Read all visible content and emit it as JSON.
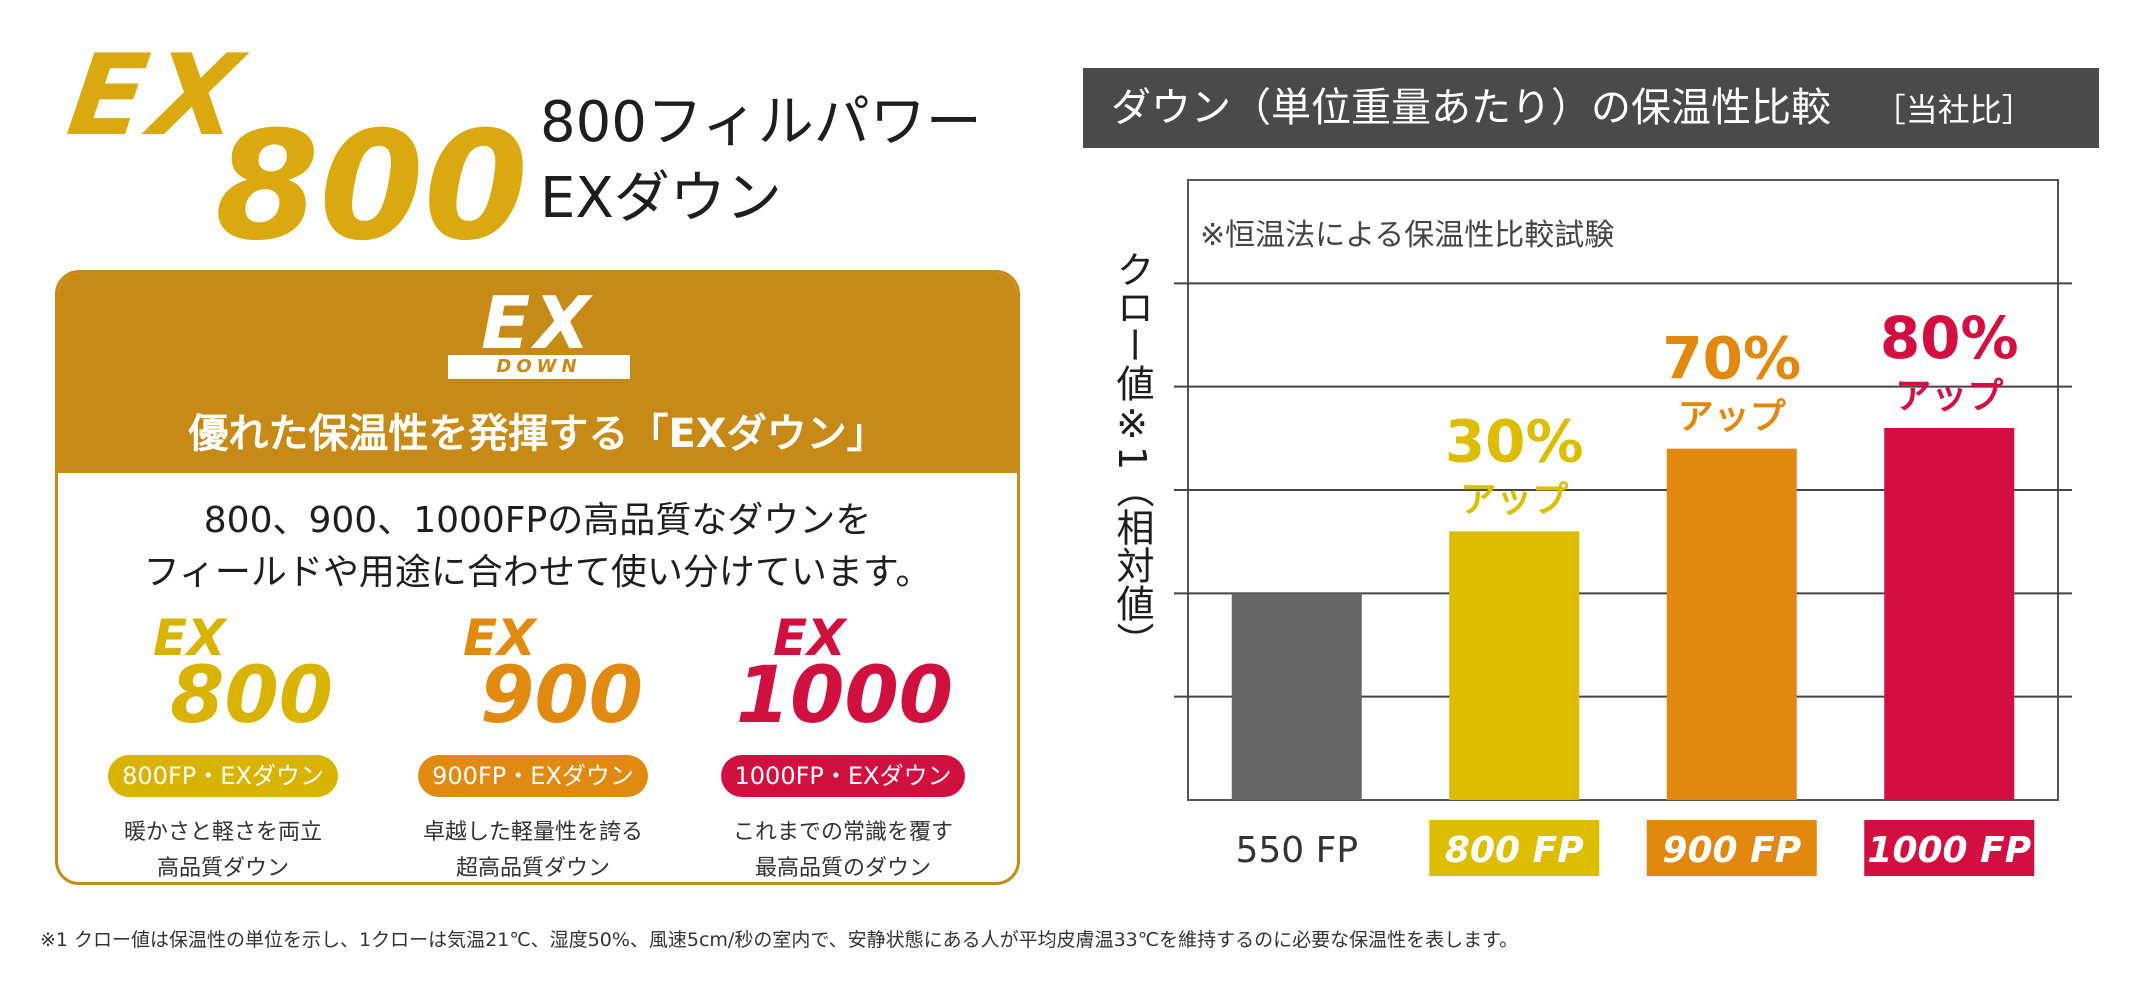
{
  "logo": {
    "ex": "EX",
    "number": "800"
  },
  "product_title": {
    "line1": "800フィルパワー",
    "line2": "EXダウン"
  },
  "card": {
    "badge_ex": "EX",
    "badge_down": "DOWN",
    "headline": "優れた保温性を発揮する「EXダウン」",
    "desc_line1": "800、900、1000FPの高品質なダウンを",
    "desc_line2": "フィールドや用途に合わせて使い分けています。",
    "variants": [
      {
        "ex": "EX",
        "number": "800",
        "pill": "800FP・EXダウン",
        "note1": "暖かさと軽さを両立",
        "note2": "高品質ダウン",
        "color": "#d8b400"
      },
      {
        "ex": "EX",
        "number": "900",
        "pill": "900FP・EXダウン",
        "note1": "卓越した軽量性を誇る",
        "note2": "超高品質ダウン",
        "color": "#e08a12"
      },
      {
        "ex": "EX",
        "number": "1000",
        "pill": "1000FP・EXダウン",
        "note1": "これまでの常識を覆す",
        "note2": "最高品質のダウン",
        "color": "#d0103f"
      }
    ]
  },
  "chart_banner": {
    "title": "ダウン（単位重量あたり）の保温性比較",
    "tag": "［当社比］"
  },
  "chart_data": {
    "type": "bar",
    "note": "※恒温法による保温性比較試験",
    "ylabel": "クロー値※1（相対値）",
    "categories": [
      "550 FP",
      "800 FP",
      "900 FP",
      "1000 FP"
    ],
    "values": [
      100,
      130,
      170,
      180
    ],
    "ylim": [
      0,
      300
    ],
    "grid": true,
    "colors": [
      "#666666",
      "#dcbd00",
      "#e3880f",
      "#d20f40"
    ],
    "annotations": [
      {
        "category": "800 FP",
        "pct": "30%",
        "word": "アップ",
        "color": "#dcbd00"
      },
      {
        "category": "900 FP",
        "pct": "70%",
        "word": "アップ",
        "color": "#e3880f"
      },
      {
        "category": "1000 FP",
        "pct": "80%",
        "word": "アップ",
        "color": "#d20f40"
      }
    ]
  },
  "footnote": "※1 クロー値は保温性の単位を示し、1クローは気温21℃、湿度50%、風速5cm/秒の室内で、安静状態にある人が平均皮膚温33℃を維持するのに必要な保温性を表します。"
}
